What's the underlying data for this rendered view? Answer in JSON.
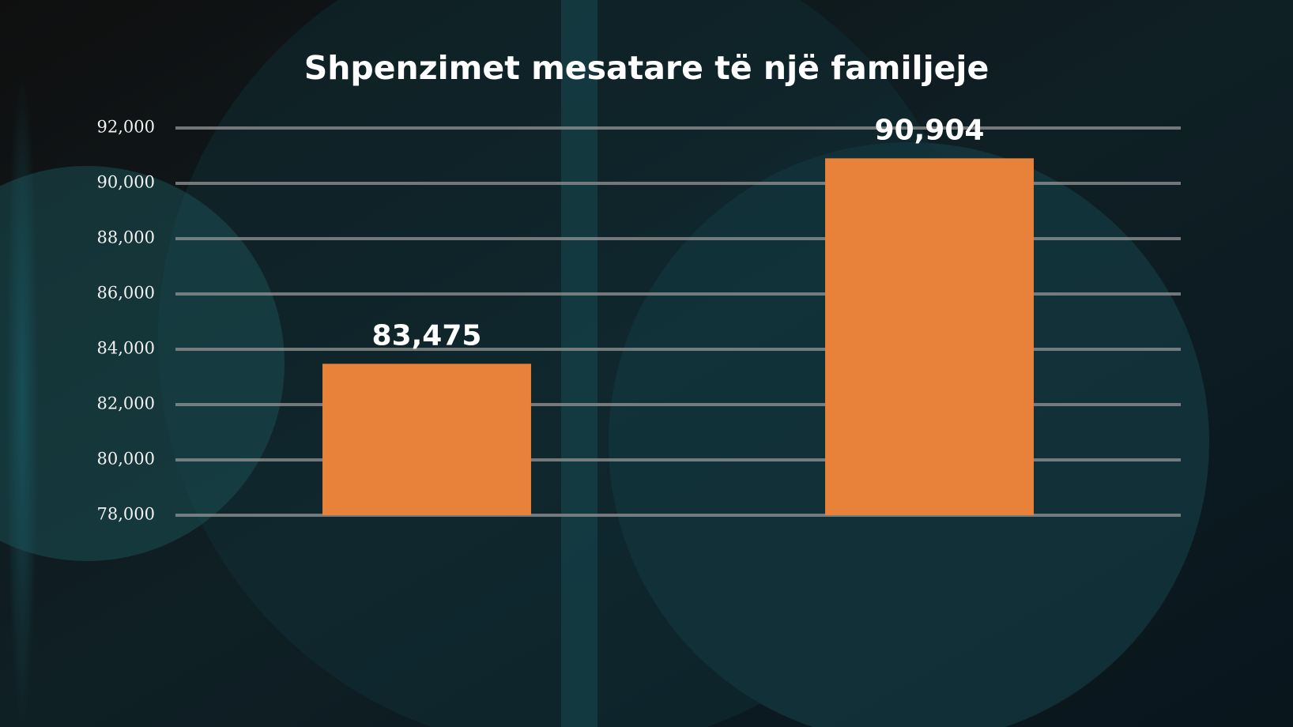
{
  "chart_data": {
    "type": "bar",
    "title": "Shpenzimet mesatare të një familjeje",
    "categories": [
      null,
      null
    ],
    "values": [
      83475,
      90904
    ],
    "value_labels": [
      "83,475",
      "90,904"
    ],
    "color": "#e8823a",
    "ylim": [
      78000,
      92000
    ],
    "yticks": [
      {
        "value": 78000,
        "label": "78,000"
      },
      {
        "value": 80000,
        "label": "80,000"
      },
      {
        "value": 82000,
        "label": "82,000"
      },
      {
        "value": 84000,
        "label": "84,000"
      },
      {
        "value": 86000,
        "label": "86,000"
      },
      {
        "value": 88000,
        "label": "88,000"
      },
      {
        "value": 90000,
        "label": "90,000"
      },
      {
        "value": 92000,
        "label": "92,000"
      }
    ],
    "grid": true
  }
}
